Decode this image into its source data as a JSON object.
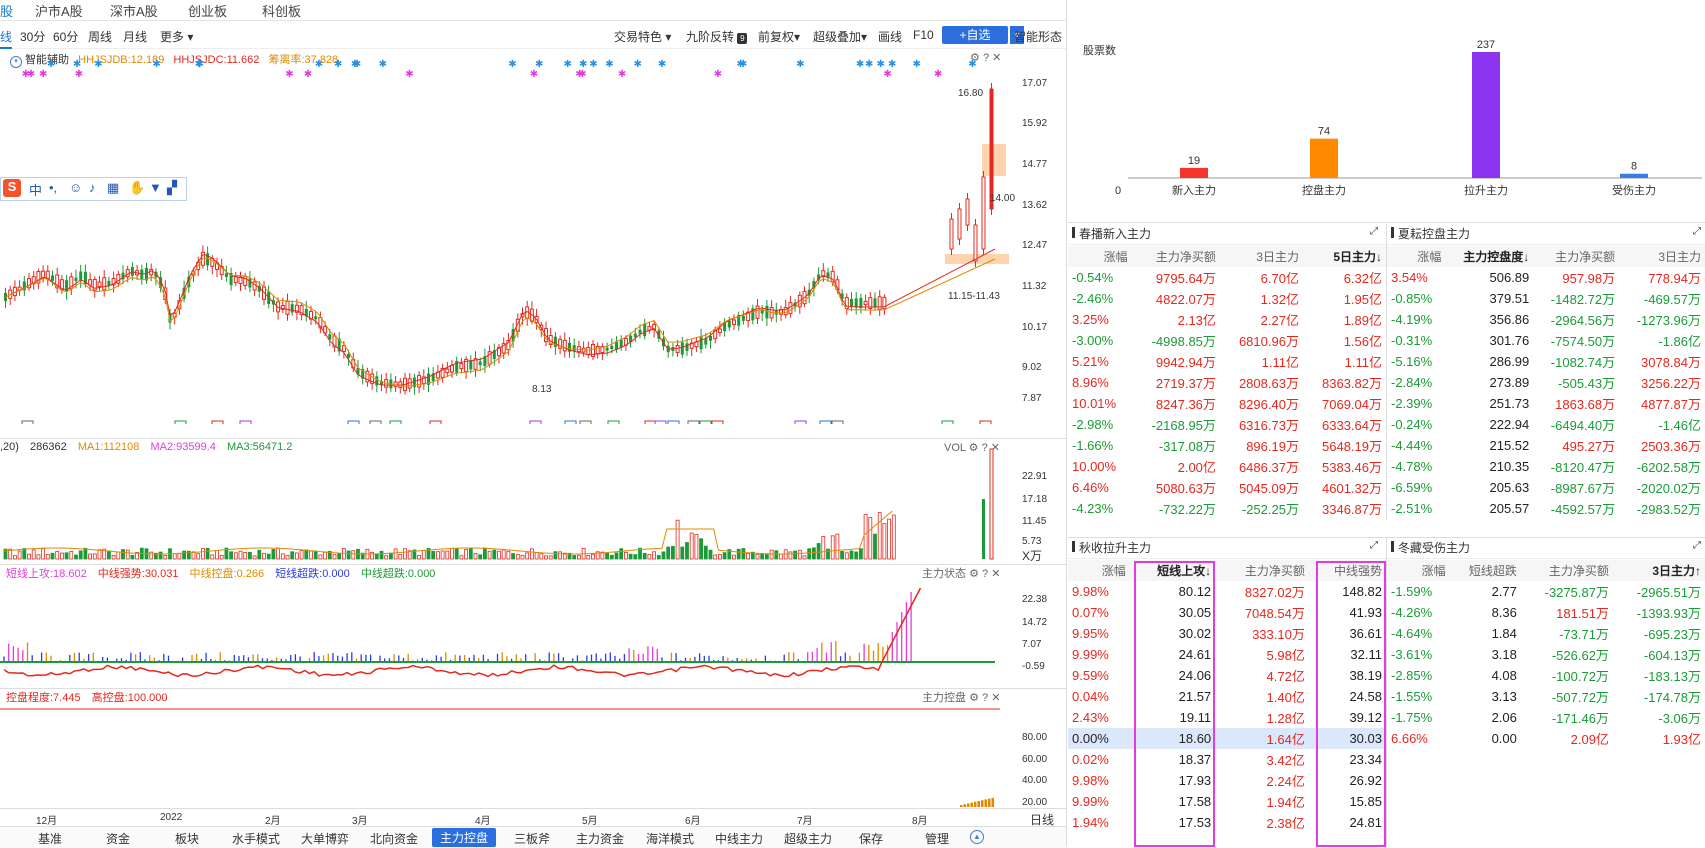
{
  "top_tabs": [
    "股",
    "沪市A股",
    "深市A股",
    "创业板",
    "科创板"
  ],
  "period": {
    "items": [
      "线",
      "30分",
      "60分",
      "周线",
      "月线",
      "更多 ▾"
    ],
    "right_items": [
      "交易特色 ▾",
      "九阶反转",
      "前复权▾",
      "超级叠加▾",
      "画线",
      "F10"
    ],
    "add_fav": "+自选",
    "smart_form": "智能形态"
  },
  "kline": {
    "assist_label": "智能辅助",
    "indicators": [
      {
        "text": "HHJSJDB:12.189",
        "color": "#e08a00"
      },
      {
        "text": "HHJSJDC:11.662",
        "color": "#e5281e"
      },
      {
        "text": "筹离率:37.828",
        "color": "#e08a00"
      }
    ],
    "price_axis": [
      "17.07",
      "15.92",
      "14.77",
      "13.62",
      "12.47",
      "11.32",
      "10.17",
      "9.02",
      "7.87"
    ],
    "annotations": {
      "high": "16.80",
      "low": "8.13",
      "current": "14.00",
      "range": "11.15-11.43"
    }
  },
  "volume": {
    "legend": [
      {
        "text": ",20)",
        "color": "#333"
      },
      {
        "text": "286362",
        "color": "#333"
      },
      {
        "text": "MA1:112108",
        "color": "#e08a00"
      },
      {
        "text": "MA2:93599.4",
        "color": "#e23ddc"
      },
      {
        "text": "MA3:56471.2",
        "color": "#1b9b37"
      }
    ],
    "title": "VOL",
    "axis": [
      "22.91",
      "17.18",
      "11.45",
      "5.73",
      "X万"
    ]
  },
  "status": {
    "legend": [
      {
        "text": "短线上攻:18.602",
        "color": "#e23ddc"
      },
      {
        "text": "中线强势:30.031",
        "color": "#e5281e"
      },
      {
        "text": "中线控盘:0.266",
        "color": "#e08a00"
      },
      {
        "text": "短线超跌:0.000",
        "color": "#2b3be0"
      },
      {
        "text": "中线超跌:0.000",
        "color": "#1b9b37"
      }
    ],
    "title": "主力状态",
    "axis": [
      "22.38",
      "14.72",
      "7.07",
      "-0.59"
    ]
  },
  "control": {
    "legend": [
      {
        "text": "控盘程度:7.445",
        "color": "#e5281e"
      },
      {
        "text": "高控盘:100.000",
        "color": "#e5281e"
      }
    ],
    "title": "主力控盘",
    "axis": [
      "80.00",
      "60.00",
      "40.00",
      "20.00"
    ]
  },
  "time_axis": [
    "12月",
    "2022",
    "2月",
    "3月",
    "4月",
    "5月",
    "6月",
    "7月",
    "8月"
  ],
  "day_line": "日线",
  "bottom_tabs": [
    "基准",
    "资金",
    "板块",
    "水手模式",
    "大单博弈",
    "北向资金",
    "主力控盘",
    "三板斧",
    "主力资金",
    "海洋模式",
    "中线主力",
    "超级主力",
    "保存",
    "管理"
  ],
  "bottom_active": "主力控盘",
  "stock_count_chart": {
    "ylabel": "股票数",
    "zero": "0",
    "categories": [
      "新入主力",
      "控盘主力",
      "拉升主力",
      "受伤主力"
    ],
    "values": [
      19,
      74,
      237,
      8
    ],
    "colors": [
      "#f5352b",
      "#ff8a00",
      "#8b35f0",
      "#3a7bea"
    ]
  },
  "chart_data": {
    "type": "bar",
    "categories": [
      "新入主力",
      "控盘主力",
      "拉升主力",
      "受伤主力"
    ],
    "values": [
      19,
      74,
      237,
      8
    ],
    "ylabel": "股票数"
  },
  "section_spring": {
    "title": "春播新入主力",
    "headers": [
      "涨幅",
      "主力净买额",
      "3日主力",
      "5日主力↓"
    ],
    "rows": [
      [
        "-0.54%",
        "9795.64万",
        "6.70亿",
        "6.32亿"
      ],
      [
        "-2.46%",
        "4822.07万",
        "1.32亿",
        "1.95亿"
      ],
      [
        "3.25%",
        "2.13亿",
        "2.27亿",
        "1.89亿"
      ],
      [
        "-3.00%",
        "-4998.85万",
        "6810.96万",
        "1.56亿"
      ],
      [
        "5.21%",
        "9942.94万",
        "1.11亿",
        "1.11亿"
      ],
      [
        "8.96%",
        "2719.37万",
        "2808.63万",
        "8363.82万"
      ],
      [
        "10.01%",
        "8247.36万",
        "8296.40万",
        "7069.04万"
      ],
      [
        "-2.98%",
        "-2168.95万",
        "6316.73万",
        "6333.64万"
      ],
      [
        "-1.66%",
        "-317.08万",
        "896.19万",
        "5648.19万"
      ],
      [
        "10.00%",
        "2.00亿",
        "6486.37万",
        "5383.46万"
      ],
      [
        "6.46%",
        "5080.63万",
        "5045.09万",
        "4601.32万"
      ],
      [
        "-4.23%",
        "-732.22万",
        "-252.25万",
        "3346.87万"
      ]
    ]
  },
  "section_summer": {
    "title": "夏耘控盘主力",
    "headers": [
      "涨幅",
      "主力控盘度↓",
      "主力净买额",
      "3日主力"
    ],
    "rows": [
      [
        "3.54%",
        "506.89",
        "957.98万",
        "778.94万"
      ],
      [
        "-0.85%",
        "379.51",
        "-1482.72万",
        "-469.57万"
      ],
      [
        "-4.19%",
        "356.86",
        "-2964.56万",
        "-1273.96万"
      ],
      [
        "-0.31%",
        "301.76",
        "-7574.50万",
        "-1.86亿"
      ],
      [
        "-5.16%",
        "286.99",
        "-1082.74万",
        "3078.84万"
      ],
      [
        "-2.84%",
        "273.89",
        "-505.43万",
        "3256.22万"
      ],
      [
        "-2.39%",
        "251.73",
        "1863.68万",
        "4877.87万"
      ],
      [
        "-0.24%",
        "222.94",
        "-6494.40万",
        "-1.46亿"
      ],
      [
        "-4.44%",
        "215.52",
        "495.27万",
        "2503.36万"
      ],
      [
        "-4.78%",
        "210.35",
        "-8120.47万",
        "-6202.58万"
      ],
      [
        "-6.59%",
        "205.63",
        "-8987.67万",
        "-2020.02万"
      ],
      [
        "-2.51%",
        "205.57",
        "-4592.57万",
        "-2983.52万"
      ]
    ]
  },
  "section_autumn": {
    "title": "秋收拉升主力",
    "headers": [
      "涨幅",
      "短线上攻↓",
      "主力净买额",
      "中线强势"
    ],
    "rows": [
      [
        "9.98%",
        "80.12",
        "8327.02万",
        "148.82"
      ],
      [
        "0.07%",
        "30.05",
        "7048.54万",
        "41.93"
      ],
      [
        "9.95%",
        "30.02",
        "333.10万",
        "36.61"
      ],
      [
        "9.99%",
        "24.61",
        "5.98亿",
        "32.11"
      ],
      [
        "9.59%",
        "24.06",
        "4.72亿",
        "38.19"
      ],
      [
        "0.04%",
        "21.57",
        "1.40亿",
        "24.58"
      ],
      [
        "2.43%",
        "19.11",
        "1.28亿",
        "39.12"
      ],
      [
        "0.00%",
        "18.60",
        "1.64亿",
        "30.03"
      ],
      [
        "0.02%",
        "18.37",
        "3.42亿",
        "23.34"
      ],
      [
        "9.98%",
        "17.93",
        "2.24亿",
        "26.92"
      ],
      [
        "9.99%",
        "17.58",
        "1.94亿",
        "15.85"
      ],
      [
        "1.94%",
        "17.53",
        "2.38亿",
        "24.81"
      ]
    ]
  },
  "section_winter": {
    "title": "冬藏受伤主力",
    "headers": [
      "涨幅",
      "短线超跌",
      "主力净买额",
      "3日主力↑"
    ],
    "rows": [
      [
        "-1.59%",
        "2.77",
        "-3275.87万",
        "-2965.51万"
      ],
      [
        "-4.26%",
        "8.36",
        "181.51万",
        "-1393.93万"
      ],
      [
        "-4.64%",
        "1.84",
        "-73.71万",
        "-695.23万"
      ],
      [
        "-3.61%",
        "3.18",
        "-526.62万",
        "-604.13万"
      ],
      [
        "-2.85%",
        "4.08",
        "-100.72万",
        "-183.13万"
      ],
      [
        "-1.55%",
        "3.13",
        "-507.72万",
        "-174.78万"
      ],
      [
        "-1.75%",
        "2.06",
        "-171.46万",
        "-3.06万"
      ],
      [
        "6.66%",
        "0.00",
        "2.09亿",
        "1.93亿"
      ]
    ]
  }
}
